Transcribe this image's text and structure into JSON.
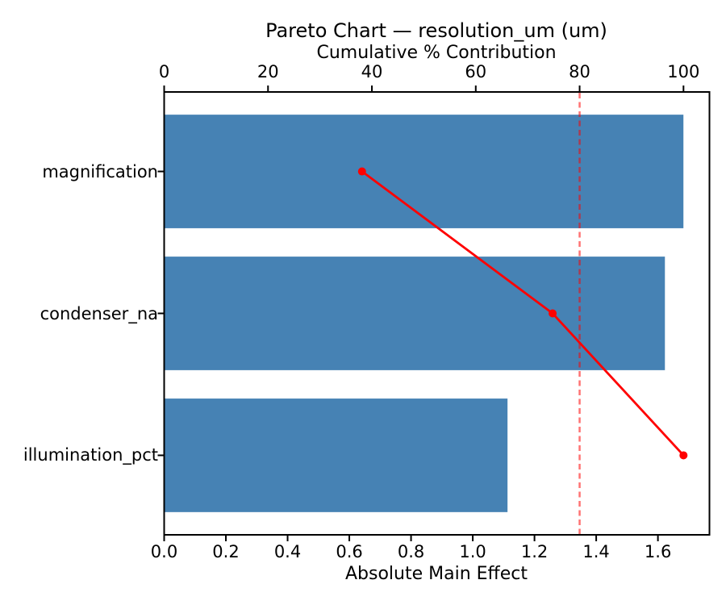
{
  "figure": {
    "kind": "pareto-chart",
    "background": "#ffffff"
  },
  "chart_data": {
    "type": "bar",
    "orientation": "horizontal",
    "title": "Pareto Chart — resolution_um (um)",
    "xlabel_top": "Cumulative % Contribution",
    "xlabel_bottom": "Absolute Main Effect",
    "categories": [
      "magnification",
      "condenser_na",
      "illumination_pct"
    ],
    "values": [
      1.68,
      1.62,
      1.11
    ],
    "series": [
      {
        "name": "Absolute Main Effect (bars)",
        "values": [
          1.68,
          1.62,
          1.11
        ]
      },
      {
        "name": "Cumulative % Contribution (line)",
        "values": [
          38.1,
          74.8,
          100.0
        ]
      }
    ],
    "cumulative_pct": [
      38.1,
      74.8,
      100.0
    ],
    "threshold_pct": 80,
    "x_ticks_bottom_labels": [
      "0.0",
      "0.2",
      "0.4",
      "0.6",
      "0.8",
      "1.0",
      "1.2",
      "1.4",
      "1.6"
    ],
    "x_ticks_bottom_values": [
      0.0,
      0.2,
      0.4,
      0.6,
      0.8,
      1.0,
      1.2,
      1.4,
      1.6
    ],
    "x_ticks_top_labels": [
      "0",
      "20",
      "40",
      "60",
      "80",
      "100"
    ],
    "x_ticks_top_values": [
      0,
      20,
      40,
      60,
      80,
      100
    ],
    "xlim_bottom": [
      0,
      1.767
    ],
    "xlim_top": [
      0,
      105
    ],
    "grid": false,
    "legend": "none",
    "colors": {
      "bar": "#4682B4",
      "line": "#ff0000",
      "marker": "#ff0000",
      "threshold_line": "#ff0000",
      "threshold_opacity": 0.55,
      "spine": "#000000",
      "text": "#000000",
      "background": "#ffffff"
    }
  }
}
